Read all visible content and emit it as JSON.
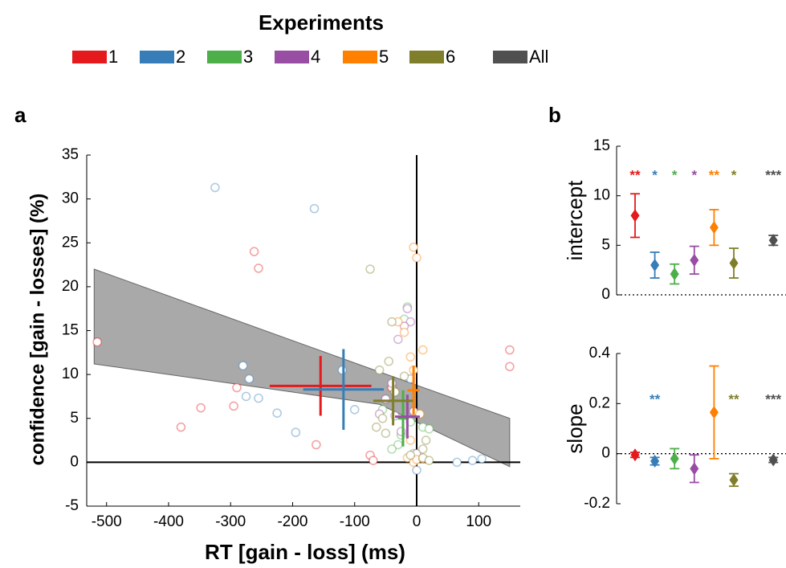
{
  "legend": {
    "title": "Experiments",
    "items": [
      {
        "name": "1",
        "color": "#e41a1c"
      },
      {
        "name": "2",
        "color": "#377eb8"
      },
      {
        "name": "3",
        "color": "#4daf4a"
      },
      {
        "name": "4",
        "color": "#984ea3"
      },
      {
        "name": "5",
        "color": "#ff7f00"
      },
      {
        "name": "6",
        "color": "#7f7f2b"
      },
      {
        "name": "All",
        "color": "#505050"
      }
    ]
  },
  "chart_data": [
    {
      "type": "scatter",
      "label": "a",
      "xlabel": "RT [gain - loss] (ms)",
      "ylabel": "confidence [gain - losses] (%)",
      "xlim": [
        -532,
        167
      ],
      "ylim": [
        -5,
        35
      ],
      "xticks": [
        -500,
        -400,
        -300,
        -200,
        -100,
        0,
        100
      ],
      "yticks": [
        -5,
        0,
        5,
        10,
        15,
        20,
        25,
        30,
        35
      ],
      "band": {
        "color": "#a9a9a9",
        "x": [
          -520,
          -60,
          150
        ],
        "upper": [
          22,
          10.3,
          5
        ],
        "lower": [
          11.2,
          6.6,
          -0.5
        ]
      },
      "series": [
        {
          "color": "#e41a1c",
          "x": [
            -515,
            -380,
            -348,
            -262,
            -255,
            -295,
            -290,
            -162,
            -75,
            -70,
            150,
            150,
            -40
          ],
          "y": [
            13.7,
            4.0,
            6.2,
            24.0,
            22.1,
            6.4,
            8.5,
            2.0,
            0.8,
            0.2,
            12.8,
            10.9,
            8.5
          ],
          "mean_x": -155,
          "mean_y": 8.7,
          "xerr": 82,
          "yerr": 3.4
        },
        {
          "color": "#377eb8",
          "x": [
            -325,
            -165,
            -225,
            -275,
            -270,
            -280,
            -255,
            -195,
            -120,
            -100,
            65,
            90,
            105,
            0,
            -10
          ],
          "y": [
            31.3,
            28.9,
            5.6,
            7.5,
            9.5,
            11.0,
            7.3,
            3.4,
            10.5,
            6.0,
            0,
            0.2,
            0.4,
            -0.9,
            9.5
          ],
          "mean_x": -118,
          "mean_y": 8.3,
          "xerr": 65,
          "yerr": 4.6
        },
        {
          "color": "#4daf4a",
          "x": [
            -20,
            -15,
            -30,
            -40,
            -25,
            -10,
            10,
            20,
            -55,
            -5
          ],
          "y": [
            16.3,
            17.7,
            2.0,
            1.5,
            3.1,
            4.6,
            4.0,
            3.8,
            6.0,
            1.0
          ],
          "mean_x": -22,
          "mean_y": 5.0,
          "xerr": 8,
          "yerr": 3.2
        },
        {
          "color": "#984ea3",
          "x": [
            -15,
            -10,
            -20,
            -40,
            -35,
            -60,
            -50,
            -5,
            -25,
            0,
            -30
          ],
          "y": [
            17.5,
            16.0,
            15.5,
            9.0,
            5.3,
            5.5,
            7.2,
            5.8,
            3.5,
            1.0,
            14.0
          ],
          "mean_x": -15,
          "mean_y": 5.2,
          "xerr": 20,
          "yerr": 2.5
        },
        {
          "color": "#ff7f00",
          "x": [
            -5,
            0,
            10,
            -10,
            -5,
            -15,
            -5,
            0,
            10,
            -20,
            -30,
            5,
            -10
          ],
          "y": [
            24.5,
            23.3,
            12.8,
            12.0,
            10.5,
            0.5,
            0.0,
            0.3,
            0.4,
            14.8,
            16.0,
            5.5,
            2.5
          ],
          "mean_x": -5,
          "mean_y": 8.2,
          "xerr": 10,
          "yerr": 2.8
        },
        {
          "color": "#7f7f2b",
          "x": [
            -75,
            -40,
            -60,
            -45,
            -65,
            -50,
            -20,
            10,
            15,
            10,
            20,
            -35,
            -55,
            -10
          ],
          "y": [
            22.0,
            16.0,
            10.5,
            11.5,
            4.0,
            3.3,
            9.8,
            0.5,
            2.5,
            1.5,
            0.2,
            8.0,
            5.0,
            0.8
          ],
          "mean_x": -38,
          "mean_y": 7.0,
          "xerr": 32,
          "yerr": 2.8
        }
      ]
    },
    {
      "type": "errorbar",
      "label": "b",
      "ylabel": "intercept",
      "ylim": [
        0,
        15
      ],
      "yticks": [
        0,
        5,
        10,
        15
      ],
      "values": [
        8.0,
        3.0,
        2.1,
        3.5,
        6.8,
        3.2,
        null,
        5.5
      ],
      "errors": [
        2.2,
        1.3,
        1.0,
        1.4,
        1.8,
        1.5,
        null,
        0.5
      ],
      "colors": [
        "#e41a1c",
        "#377eb8",
        "#4daf4a",
        "#984ea3",
        "#ff7f00",
        "#7f7f2b",
        null,
        "#505050"
      ],
      "annotations": [
        "**",
        "*",
        "*",
        "*",
        "**",
        "*",
        null,
        "***"
      ]
    },
    {
      "type": "errorbar",
      "ylabel": "slope",
      "ylim": [
        -0.2,
        0.4
      ],
      "yticks": [
        -0.2,
        0,
        0.2,
        0.4
      ],
      "values": [
        -0.005,
        -0.03,
        -0.02,
        -0.06,
        0.165,
        -0.105,
        null,
        -0.025
      ],
      "errors": [
        0.01,
        0.015,
        0.04,
        0.055,
        0.185,
        0.025,
        null,
        0.01
      ],
      "colors": [
        "#e41a1c",
        "#377eb8",
        "#4daf4a",
        "#984ea3",
        "#ff7f00",
        "#7f7f2b",
        null,
        "#505050"
      ],
      "annotations": [
        null,
        "**",
        null,
        null,
        null,
        "**",
        null,
        "***"
      ]
    }
  ]
}
